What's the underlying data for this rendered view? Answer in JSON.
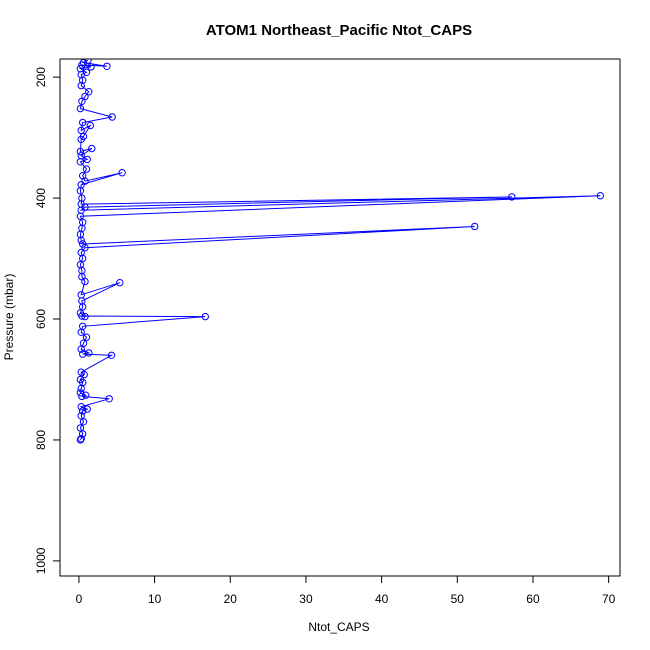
{
  "chart_data": {
    "type": "line",
    "title": "ATOM1 Northeast_Pacific Ntot_CAPS",
    "xlabel": "Ntot_CAPS",
    "ylabel": "Pressure (mbar)",
    "xlim": [
      -2.5,
      71.5
    ],
    "ylim": [
      1025,
      170
    ],
    "y_reversed": true,
    "x_ticks": [
      0,
      10,
      20,
      30,
      40,
      50,
      60,
      70
    ],
    "y_ticks": [
      200,
      400,
      600,
      800,
      1000
    ],
    "grid": false,
    "legend": "none",
    "series": [
      {
        "color": "#0000ff",
        "marker": "open-circle",
        "points": [
          [
            0.2,
            800
          ],
          [
            0.3,
            798
          ],
          [
            0.5,
            790
          ],
          [
            0.2,
            780
          ],
          [
            0.6,
            770
          ],
          [
            0.3,
            760
          ],
          [
            0.5,
            752
          ],
          [
            1.1,
            749
          ],
          [
            0.3,
            745
          ],
          [
            4.0,
            732
          ],
          [
            0.4,
            728
          ],
          [
            0.9,
            726
          ],
          [
            0.2,
            722
          ],
          [
            0.3,
            715
          ],
          [
            0.5,
            705
          ],
          [
            0.2,
            700
          ],
          [
            0.7,
            692
          ],
          [
            0.3,
            688
          ],
          [
            4.3,
            660
          ],
          [
            0.5,
            658
          ],
          [
            1.3,
            656
          ],
          [
            0.3,
            650
          ],
          [
            0.6,
            640
          ],
          [
            1.0,
            630
          ],
          [
            0.3,
            622
          ],
          [
            0.5,
            612
          ],
          [
            16.7,
            596
          ],
          [
            0.4,
            595
          ],
          [
            0.8,
            596
          ],
          [
            0.2,
            590
          ],
          [
            0.5,
            580
          ],
          [
            0.4,
            570
          ],
          [
            5.4,
            540
          ],
          [
            0.3,
            560
          ],
          [
            0.8,
            538
          ],
          [
            0.4,
            530
          ],
          [
            0.4,
            520
          ],
          [
            0.2,
            510
          ],
          [
            0.5,
            500
          ],
          [
            0.3,
            490
          ],
          [
            0.8,
            482
          ],
          [
            52.3,
            447
          ],
          [
            0.5,
            476
          ],
          [
            0.3,
            470
          ],
          [
            0.2,
            460
          ],
          [
            0.4,
            450
          ],
          [
            0.5,
            440
          ],
          [
            0.2,
            430
          ],
          [
            68.9,
            396
          ],
          [
            0.3,
            420
          ],
          [
            0.8,
            415
          ],
          [
            57.2,
            398
          ],
          [
            0.3,
            410
          ],
          [
            0.4,
            400
          ],
          [
            0.2,
            388
          ],
          [
            0.3,
            378
          ],
          [
            5.7,
            358
          ],
          [
            0.8,
            372
          ],
          [
            0.5,
            363
          ],
          [
            1.0,
            352
          ],
          [
            0.2,
            340
          ],
          [
            1.1,
            336
          ],
          [
            0.3,
            330
          ],
          [
            1.7,
            318
          ],
          [
            0.2,
            323
          ],
          [
            0.3,
            303
          ],
          [
            0.6,
            298
          ],
          [
            1.5,
            280
          ],
          [
            0.3,
            288
          ],
          [
            0.5,
            275
          ],
          [
            4.4,
            266
          ],
          [
            0.2,
            252
          ],
          [
            0.4,
            240
          ],
          [
            0.8,
            232
          ],
          [
            1.3,
            224
          ],
          [
            0.3,
            214
          ],
          [
            0.5,
            205
          ],
          [
            0.3,
            196
          ],
          [
            1.0,
            192
          ],
          [
            0.2,
            186
          ],
          [
            1.6,
            183
          ],
          [
            0.4,
            180
          ],
          [
            3.7,
            182
          ],
          [
            0.6,
            176
          ],
          [
            1.2,
            172
          ]
        ]
      }
    ]
  }
}
